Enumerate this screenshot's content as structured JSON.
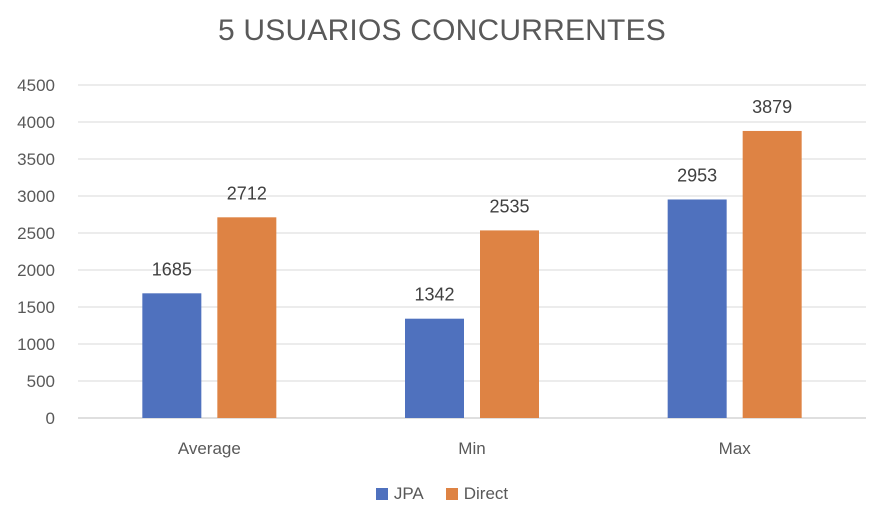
{
  "chart_data": {
    "type": "bar",
    "title": "5 USUARIOS CONCURRENTES",
    "categories": [
      "Average",
      "Min",
      "Max"
    ],
    "series": [
      {
        "name": "JPA",
        "values": [
          1685,
          1342,
          2953
        ],
        "color": "#4F71BE"
      },
      {
        "name": "Direct",
        "values": [
          2712,
          2535,
          3879
        ],
        "color": "#DE8344"
      }
    ],
    "ylim": [
      0,
      4500
    ],
    "yticks": [
      0,
      500,
      1000,
      1500,
      2000,
      2500,
      3000,
      3500,
      4000,
      4500
    ],
    "grid": true,
    "legend_position": "bottom",
    "data_labels": true
  }
}
